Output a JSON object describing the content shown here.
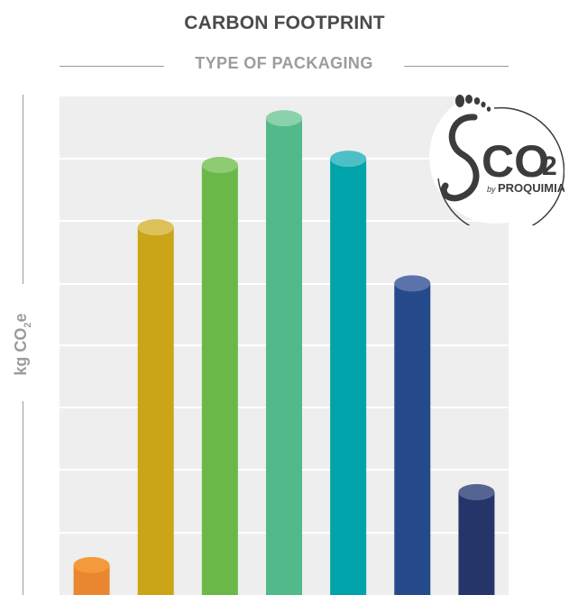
{
  "chart_data": {
    "type": "bar",
    "title": "CARBON FOOTPRINT",
    "subtitle": "TYPE OF PACKAGING",
    "ylabel": "kg CO2e",
    "ylabel_main": "kg CO",
    "ylabel_sub": "2",
    "ylabel_tail": "e",
    "xlabel": "",
    "grid": true,
    "categories": [
      "",
      "",
      "",
      "",
      "",
      "",
      ""
    ],
    "values": [
      4.8,
      59,
      69,
      76.5,
      70,
      50,
      16.5
    ],
    "ylim": [
      0,
      80
    ],
    "colors": [
      "#E8872F",
      "#C9A517",
      "#6BB84A",
      "#52B98A",
      "#00A3A9",
      "#254A8C",
      "#263569"
    ],
    "cap_colors": [
      "#F49A3C",
      "#DDC25C",
      "#8FCB73",
      "#8BD1AC",
      "#4CC0C6",
      "#5B73AB",
      "#566494"
    ]
  },
  "logo": {
    "main_text": "CO",
    "sub_text": "2",
    "by_text": "by",
    "brand_text": "PROQUIMIA"
  }
}
